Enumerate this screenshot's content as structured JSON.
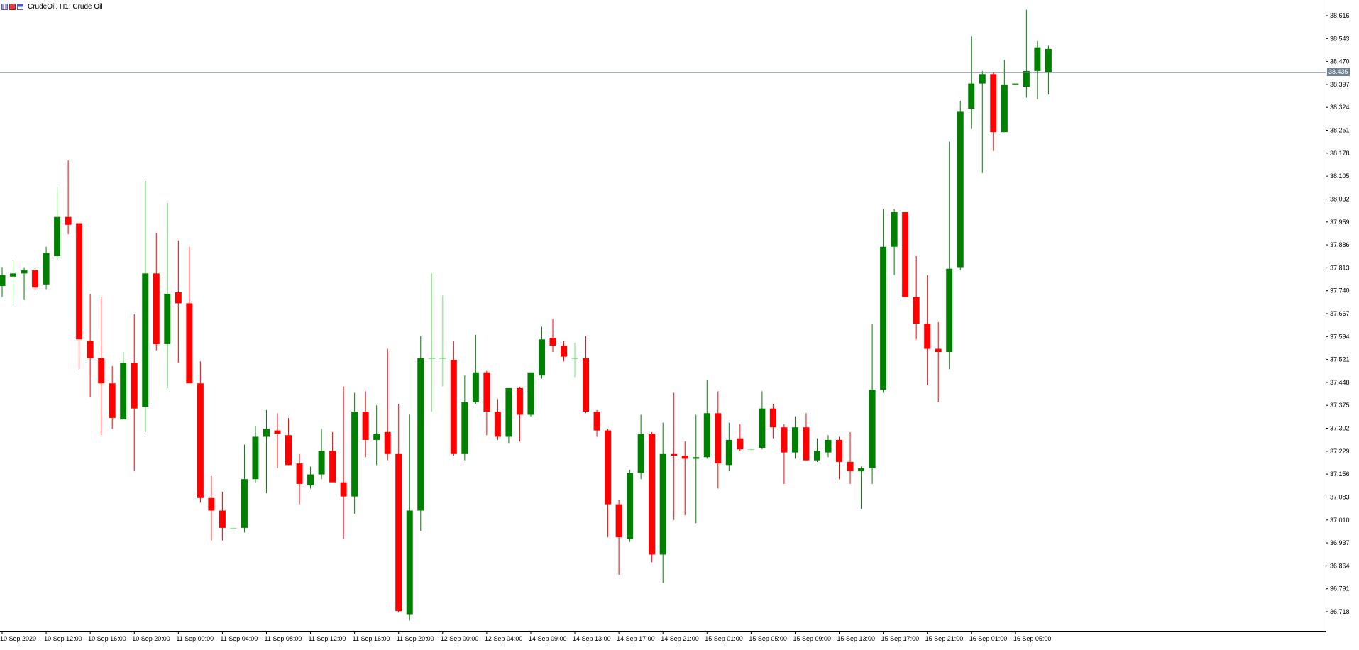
{
  "header": {
    "symbol": "CrudeOil",
    "timeframe": "H1:",
    "description": "Crude Oil",
    "icons": [
      "chart-type-icon",
      "indicator-icon",
      "template-icon"
    ]
  },
  "colors": {
    "bull": "#008000",
    "bear": "#ff0000",
    "bull_doji": "#66ee66",
    "axis": "#000000",
    "grid_text": "#000000",
    "current_price_line": "#708090",
    "background": "#ffffff"
  },
  "current_price": {
    "value": 38.435,
    "label": "38.435"
  },
  "chart_data": {
    "type": "candlestick",
    "ylim": [
      36.69,
      38.65
    ],
    "y_ticks": [
      "38.616",
      "38.543",
      "38.470",
      "38.397",
      "38.324",
      "38.251",
      "38.178",
      "38.105",
      "38.032",
      "37.959",
      "37.886",
      "37.813",
      "37.740",
      "37.667",
      "37.594",
      "37.521",
      "37.448",
      "37.375",
      "37.302",
      "37.229",
      "37.156",
      "37.083",
      "37.010",
      "36.937",
      "36.864",
      "36.791",
      "36.718"
    ],
    "x_ticks": [
      {
        "i": 0,
        "label": "10 Sep 2020"
      },
      {
        "i": 4,
        "label": "10 Sep 12:00"
      },
      {
        "i": 8,
        "label": "10 Sep 16:00"
      },
      {
        "i": 12,
        "label": "10 Sep 20:00"
      },
      {
        "i": 16,
        "label": "11 Sep 00:00"
      },
      {
        "i": 20,
        "label": "11 Sep 04:00"
      },
      {
        "i": 24,
        "label": "11 Sep 08:00"
      },
      {
        "i": 28,
        "label": "11 Sep 12:00"
      },
      {
        "i": 32,
        "label": "11 Sep 16:00"
      },
      {
        "i": 36,
        "label": "11 Sep 20:00"
      },
      {
        "i": 40,
        "label": "12 Sep 00:00"
      },
      {
        "i": 44,
        "label": "12 Sep 04:00"
      },
      {
        "i": 48,
        "label": "14 Sep 09:00"
      },
      {
        "i": 52,
        "label": "14 Sep 13:00"
      },
      {
        "i": 56,
        "label": "14 Sep 17:00"
      },
      {
        "i": 60,
        "label": "14 Sep 21:00"
      },
      {
        "i": 64,
        "label": "15 Sep 01:00"
      },
      {
        "i": 68,
        "label": "15 Sep 05:00"
      },
      {
        "i": 72,
        "label": "15 Sep 09:00"
      },
      {
        "i": 76,
        "label": "15 Sep 13:00"
      },
      {
        "i": 80,
        "label": "15 Sep 17:00"
      },
      {
        "i": 84,
        "label": "15 Sep 21:00"
      },
      {
        "i": 88,
        "label": "16 Sep 01:00"
      },
      {
        "i": 92,
        "label": "16 Sep 05:00"
      }
    ],
    "candles": [
      {
        "o": 37.755,
        "h": 37.815,
        "l": 37.72,
        "c": 37.79
      },
      {
        "o": 37.785,
        "h": 37.835,
        "l": 37.7,
        "c": 37.795
      },
      {
        "o": 37.795,
        "h": 37.815,
        "l": 37.71,
        "c": 37.805
      },
      {
        "o": 37.805,
        "h": 37.815,
        "l": 37.74,
        "c": 37.75
      },
      {
        "o": 37.76,
        "h": 37.88,
        "l": 37.745,
        "c": 37.86
      },
      {
        "o": 37.85,
        "h": 38.07,
        "l": 37.84,
        "c": 37.975
      },
      {
        "o": 37.975,
        "h": 38.155,
        "l": 37.92,
        "c": 37.95
      },
      {
        "o": 37.955,
        "h": 37.955,
        "l": 37.49,
        "c": 37.585
      },
      {
        "o": 37.58,
        "h": 37.73,
        "l": 37.4,
        "c": 37.525
      },
      {
        "o": 37.525,
        "h": 37.72,
        "l": 37.28,
        "c": 37.445
      },
      {
        "o": 37.445,
        "h": 37.5,
        "l": 37.3,
        "c": 37.335
      },
      {
        "o": 37.33,
        "h": 37.545,
        "l": 37.33,
        "c": 37.51
      },
      {
        "o": 37.51,
        "h": 37.665,
        "l": 37.165,
        "c": 37.365
      },
      {
        "o": 37.37,
        "h": 38.09,
        "l": 37.29,
        "c": 37.795
      },
      {
        "o": 37.795,
        "h": 37.925,
        "l": 37.55,
        "c": 37.57
      },
      {
        "o": 37.57,
        "h": 38.02,
        "l": 37.43,
        "c": 37.73
      },
      {
        "o": 37.735,
        "h": 37.9,
        "l": 37.51,
        "c": 37.7
      },
      {
        "o": 37.7,
        "h": 37.88,
        "l": 37.45,
        "c": 37.445
      },
      {
        "o": 37.445,
        "h": 37.515,
        "l": 37.065,
        "c": 37.08
      },
      {
        "o": 37.08,
        "h": 37.15,
        "l": 36.945,
        "c": 37.04
      },
      {
        "o": 37.04,
        "h": 37.1,
        "l": 36.945,
        "c": 36.985
      },
      {
        "o": 36.985,
        "h": 36.985,
        "l": 36.985,
        "c": 36.985
      },
      {
        "o": 36.985,
        "h": 37.25,
        "l": 36.97,
        "c": 37.14
      },
      {
        "o": 37.14,
        "h": 37.31,
        "l": 37.13,
        "c": 37.275
      },
      {
        "o": 37.275,
        "h": 37.36,
        "l": 37.095,
        "c": 37.3
      },
      {
        "o": 37.295,
        "h": 37.35,
        "l": 37.175,
        "c": 37.285
      },
      {
        "o": 37.28,
        "h": 37.335,
        "l": 37.185,
        "c": 37.185
      },
      {
        "o": 37.19,
        "h": 37.22,
        "l": 37.06,
        "c": 37.125
      },
      {
        "o": 37.12,
        "h": 37.18,
        "l": 37.11,
        "c": 37.155
      },
      {
        "o": 37.155,
        "h": 37.3,
        "l": 37.14,
        "c": 37.23
      },
      {
        "o": 37.23,
        "h": 37.29,
        "l": 37.135,
        "c": 37.13
      },
      {
        "o": 37.13,
        "h": 37.435,
        "l": 36.95,
        "c": 37.085
      },
      {
        "o": 37.085,
        "h": 37.415,
        "l": 37.03,
        "c": 37.355
      },
      {
        "o": 37.355,
        "h": 37.42,
        "l": 37.21,
        "c": 37.265
      },
      {
        "o": 37.265,
        "h": 37.375,
        "l": 37.185,
        "c": 37.285
      },
      {
        "o": 37.29,
        "h": 37.555,
        "l": 37.2,
        "c": 37.22
      },
      {
        "o": 37.22,
        "h": 37.38,
        "l": 36.715,
        "c": 36.72
      },
      {
        "o": 36.71,
        "h": 37.345,
        "l": 36.69,
        "c": 37.04
      },
      {
        "o": 37.04,
        "h": 37.595,
        "l": 36.975,
        "c": 37.525
      },
      {
        "o": 37.525,
        "h": 37.795,
        "l": 37.355,
        "c": 37.525
      },
      {
        "o": 37.525,
        "h": 37.725,
        "l": 37.435,
        "c": 37.525
      },
      {
        "o": 37.52,
        "h": 37.58,
        "l": 37.215,
        "c": 37.22
      },
      {
        "o": 37.22,
        "h": 37.47,
        "l": 37.2,
        "c": 37.385
      },
      {
        "o": 37.385,
        "h": 37.6,
        "l": 37.38,
        "c": 37.48
      },
      {
        "o": 37.48,
        "h": 37.485,
        "l": 37.28,
        "c": 37.355
      },
      {
        "o": 37.355,
        "h": 37.395,
        "l": 37.265,
        "c": 37.275
      },
      {
        "o": 37.275,
        "h": 37.43,
        "l": 37.255,
        "c": 37.43
      },
      {
        "o": 37.43,
        "h": 37.435,
        "l": 37.26,
        "c": 37.345
      },
      {
        "o": 37.345,
        "h": 37.48,
        "l": 37.34,
        "c": 37.48
      },
      {
        "o": 37.47,
        "h": 37.625,
        "l": 37.46,
        "c": 37.585
      },
      {
        "o": 37.59,
        "h": 37.65,
        "l": 37.545,
        "c": 37.565
      },
      {
        "o": 37.565,
        "h": 37.58,
        "l": 37.515,
        "c": 37.53
      },
      {
        "o": 37.525,
        "h": 37.575,
        "l": 37.465,
        "c": 37.525
      },
      {
        "o": 37.525,
        "h": 37.595,
        "l": 37.35,
        "c": 37.355
      },
      {
        "o": 37.355,
        "h": 37.36,
        "l": 37.275,
        "c": 37.295
      },
      {
        "o": 37.295,
        "h": 37.3,
        "l": 36.955,
        "c": 37.06
      },
      {
        "o": 37.06,
        "h": 37.075,
        "l": 36.835,
        "c": 36.955
      },
      {
        "o": 36.95,
        "h": 37.17,
        "l": 36.94,
        "c": 37.16
      },
      {
        "o": 37.16,
        "h": 37.345,
        "l": 37.14,
        "c": 37.285
      },
      {
        "o": 37.285,
        "h": 37.29,
        "l": 36.875,
        "c": 36.9
      },
      {
        "o": 36.9,
        "h": 37.32,
        "l": 36.81,
        "c": 37.22
      },
      {
        "o": 37.22,
        "h": 37.415,
        "l": 37.01,
        "c": 37.215
      },
      {
        "o": 37.215,
        "h": 37.26,
        "l": 37.025,
        "c": 37.205
      },
      {
        "o": 37.205,
        "h": 37.345,
        "l": 37.0,
        "c": 37.21
      },
      {
        "o": 37.21,
        "h": 37.455,
        "l": 37.205,
        "c": 37.35
      },
      {
        "o": 37.35,
        "h": 37.42,
        "l": 37.11,
        "c": 37.19
      },
      {
        "o": 37.185,
        "h": 37.32,
        "l": 37.165,
        "c": 37.265
      },
      {
        "o": 37.27,
        "h": 37.315,
        "l": 37.23,
        "c": 37.235
      },
      {
        "o": 37.235,
        "h": 37.235,
        "l": 37.235,
        "c": 37.235
      },
      {
        "o": 37.24,
        "h": 37.42,
        "l": 37.235,
        "c": 37.365
      },
      {
        "o": 37.365,
        "h": 37.38,
        "l": 37.27,
        "c": 37.305
      },
      {
        "o": 37.305,
        "h": 37.315,
        "l": 37.125,
        "c": 37.225
      },
      {
        "o": 37.225,
        "h": 37.34,
        "l": 37.205,
        "c": 37.305
      },
      {
        "o": 37.305,
        "h": 37.35,
        "l": 37.2,
        "c": 37.2
      },
      {
        "o": 37.2,
        "h": 37.27,
        "l": 37.195,
        "c": 37.23
      },
      {
        "o": 37.225,
        "h": 37.28,
        "l": 37.21,
        "c": 37.265
      },
      {
        "o": 37.265,
        "h": 37.275,
        "l": 37.14,
        "c": 37.195
      },
      {
        "o": 37.195,
        "h": 37.29,
        "l": 37.125,
        "c": 37.165
      },
      {
        "o": 37.165,
        "h": 37.18,
        "l": 37.045,
        "c": 37.175
      },
      {
        "o": 37.175,
        "h": 37.635,
        "l": 37.125,
        "c": 37.425
      },
      {
        "o": 37.425,
        "h": 38.0,
        "l": 37.415,
        "c": 37.88
      },
      {
        "o": 37.88,
        "h": 38.0,
        "l": 37.79,
        "c": 37.99
      },
      {
        "o": 37.99,
        "h": 37.99,
        "l": 37.72,
        "c": 37.72
      },
      {
        "o": 37.72,
        "h": 37.85,
        "l": 37.585,
        "c": 37.635
      },
      {
        "o": 37.635,
        "h": 37.79,
        "l": 37.44,
        "c": 37.555
      },
      {
        "o": 37.555,
        "h": 37.64,
        "l": 37.385,
        "c": 37.545
      },
      {
        "o": 37.545,
        "h": 38.215,
        "l": 37.49,
        "c": 37.81
      },
      {
        "o": 37.815,
        "h": 38.345,
        "l": 37.805,
        "c": 38.31
      },
      {
        "o": 38.32,
        "h": 38.55,
        "l": 38.255,
        "c": 38.4
      },
      {
        "o": 38.4,
        "h": 38.44,
        "l": 38.115,
        "c": 38.43
      },
      {
        "o": 38.43,
        "h": 38.435,
        "l": 38.185,
        "c": 38.245
      },
      {
        "o": 38.245,
        "h": 38.475,
        "l": 38.245,
        "c": 38.395
      },
      {
        "o": 38.395,
        "h": 38.4,
        "l": 38.395,
        "c": 38.4
      },
      {
        "o": 38.39,
        "h": 38.635,
        "l": 38.355,
        "c": 38.44
      },
      {
        "o": 38.44,
        "h": 38.535,
        "l": 38.35,
        "c": 38.515
      },
      {
        "o": 38.435,
        "h": 38.52,
        "l": 38.365,
        "c": 38.51
      }
    ]
  }
}
